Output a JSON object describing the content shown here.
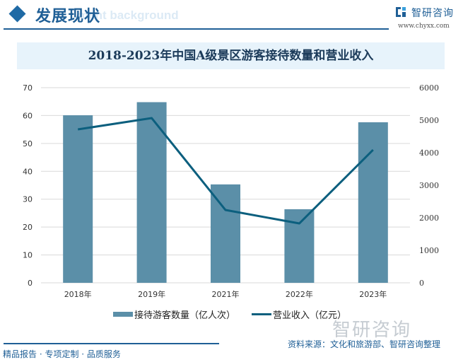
{
  "header": {
    "section_title": "发展现状",
    "section_bg_text": "ment background",
    "logo_name": "智研咨询",
    "logo_url": "www.chyxx.com"
  },
  "title": "2018-2023年中国A级景区游客接待数量和营业收入",
  "chart_data": {
    "type": "bar",
    "title": "2018-2023年中国A级景区游客接待数量和营业收入",
    "categories": [
      "2018年",
      "2019年",
      "2021年",
      "2022年",
      "2023年"
    ],
    "series": [
      {
        "name": "接待游客数量（亿人次）",
        "type": "bar",
        "axis": "left",
        "color": "#5b8fa8",
        "values": [
          60.1,
          64.8,
          35.3,
          26.4,
          57.6
        ]
      },
      {
        "name": "营业收入（亿元）",
        "type": "line",
        "axis": "right",
        "color": "#0c5f7e",
        "values": [
          4717,
          5065,
          2239,
          1826,
          4087
        ]
      }
    ],
    "y_left": {
      "ticks": [
        "0",
        "10",
        "20",
        "30",
        "40",
        "50",
        "60",
        "70"
      ],
      "ylim": [
        0,
        70
      ]
    },
    "y_right": {
      "ticks": [
        "0",
        "1000",
        "2000",
        "3000",
        "4000",
        "5000",
        "6000"
      ],
      "ylim": [
        0,
        6000
      ]
    },
    "grid": true,
    "legend_position": "bottom"
  },
  "legend": {
    "bar_label": "接待游客数量（亿人次）",
    "line_label": "营业收入（亿元）"
  },
  "footer": {
    "tagline": "精品报告 · 专项定制 · 品质服务",
    "source": "资料来源：文化和旅游部、智研咨询整理",
    "watermark": "智研咨询"
  }
}
